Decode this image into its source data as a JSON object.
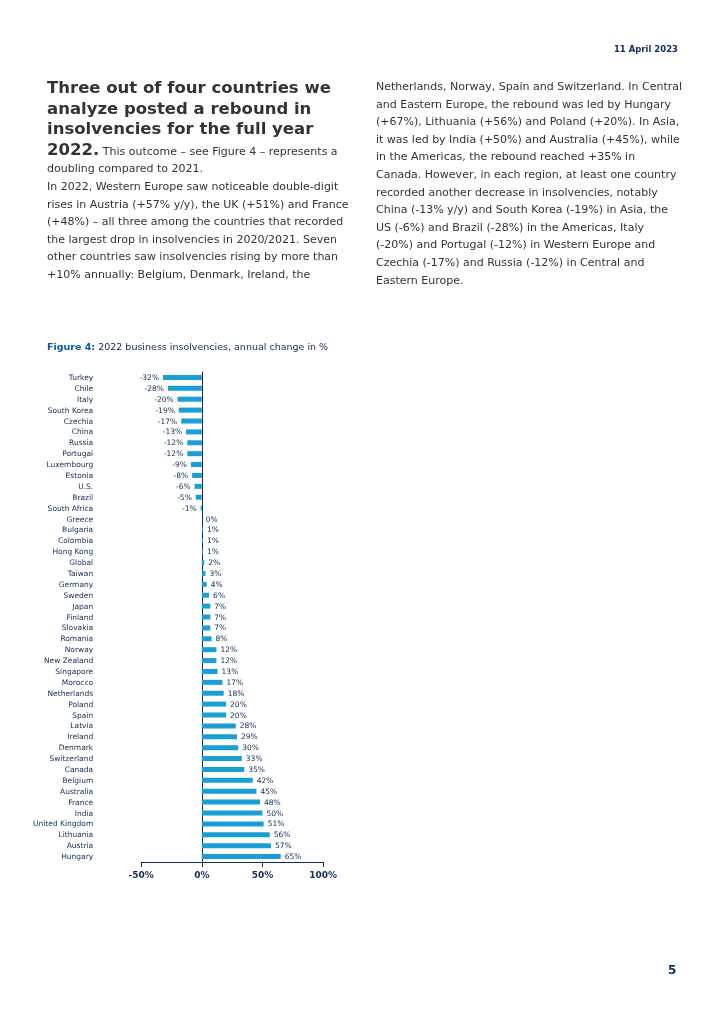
{
  "chart_data": {
    "type": "bar",
    "orientation": "horizontal",
    "title": "Figure 4: 2022 business insolvencies, annual change in %",
    "annotations": [
      "11 April 2023",
      "Three out of four countries we analyze posted a rebound in insolvencies for the full year 2022.",
      "This outcome – see Figure 4 – represents a doubling compared to 2021.",
      "In 2022, Western Europe saw noticeable double-digit rises in Austria (+57% y/y), the UK (+51%) and France (+48%) – all three among the countries that recorded the largest drop in insolvencies in 2020/2021. Seven other countries saw insolvencies rising by more than +10% annually: Belgium, Denmark, Ireland, the Netherlands, Norway, Spain and Switzerland. In Central and Eastern Europe, the rebound was led by Hungary (+67%), Lithuania (+56%) and Poland (+20%). In Asia, it was led by India (+50%) and Australia (+45%), while in the Americas, the rebound reached +35% in Canada. However, in each region, at least one country recorded another decrease in insolvencies, notably China (-13% y/y) and South Korea (-19%) in Asia, the US (-6%) and Brazil (-28%) in the Americas, Italy (-20%) and Portugal (-12%) in Western Europe and Czechia (-17%) and Russia (-12%) in Central and Eastern Europe.",
      "5"
    ],
    "categories": [
      "Turkey",
      "Chile",
      "Italy",
      "South Korea",
      "Czechia",
      "China",
      "Russia",
      "Portugal",
      "Luxembourg",
      "Estonia",
      "U.S.",
      "Brazil",
      "South Africa",
      "Greece",
      "Bulgaria",
      "Colombia",
      "Hong Kong",
      "Global",
      "Taiwan",
      "Germany",
      "Sweden",
      "Japan",
      "Finland",
      "Slovakia",
      "Romania",
      "Norway",
      "New Zealand",
      "Singapore",
      "Morocco",
      "Netherlands",
      "Poland",
      "Spain",
      "Latvia",
      "Ireland",
      "Denmark",
      "Switzerland",
      "Canada",
      "Belgium",
      "Australia",
      "France",
      "India",
      "United Kingdom",
      "Lithuania",
      "Austria",
      "Hungary"
    ],
    "values": [
      -32,
      -28,
      -20,
      -19,
      -17,
      -13,
      -12,
      -12,
      -9,
      -8,
      -6,
      -5,
      -1,
      0,
      1,
      1,
      1,
      2,
      3,
      4,
      6,
      7,
      7,
      7,
      8,
      12,
      12,
      13,
      17,
      18,
      20,
      20,
      28,
      29,
      30,
      33,
      35,
      42,
      45,
      48,
      50,
      51,
      56,
      57,
      65
    ],
    "value_labels": [
      "-32%",
      "-28%",
      "-20%",
      "-19%",
      "-17%",
      "-13%",
      "-12%",
      "-12%",
      "-9%",
      "-8%",
      "-6%",
      "-5%",
      "-1%",
      "0%",
      "1%",
      "1%",
      "1%",
      "2%",
      "3%",
      "4%",
      "6%",
      "7%",
      "7%",
      "7%",
      "8%",
      "12%",
      "12%",
      "13%",
      "17%",
      "18%",
      "20%",
      "20%",
      "28%",
      "29%",
      "30%",
      "33%",
      "35%",
      "42%",
      "45%",
      "48%",
      "50%",
      "51%",
      "56%",
      "57%",
      "65%"
    ],
    "color": "#1a9ed4",
    "xlim": [
      -50,
      100
    ],
    "xticks": [
      {
        "value": -50,
        "label": "-50%"
      },
      {
        "value": 0,
        "label": "0%"
      },
      {
        "value": 50,
        "label": "50%"
      },
      {
        "value": 100,
        "label": "100%"
      }
    ],
    "grid": false
  }
}
